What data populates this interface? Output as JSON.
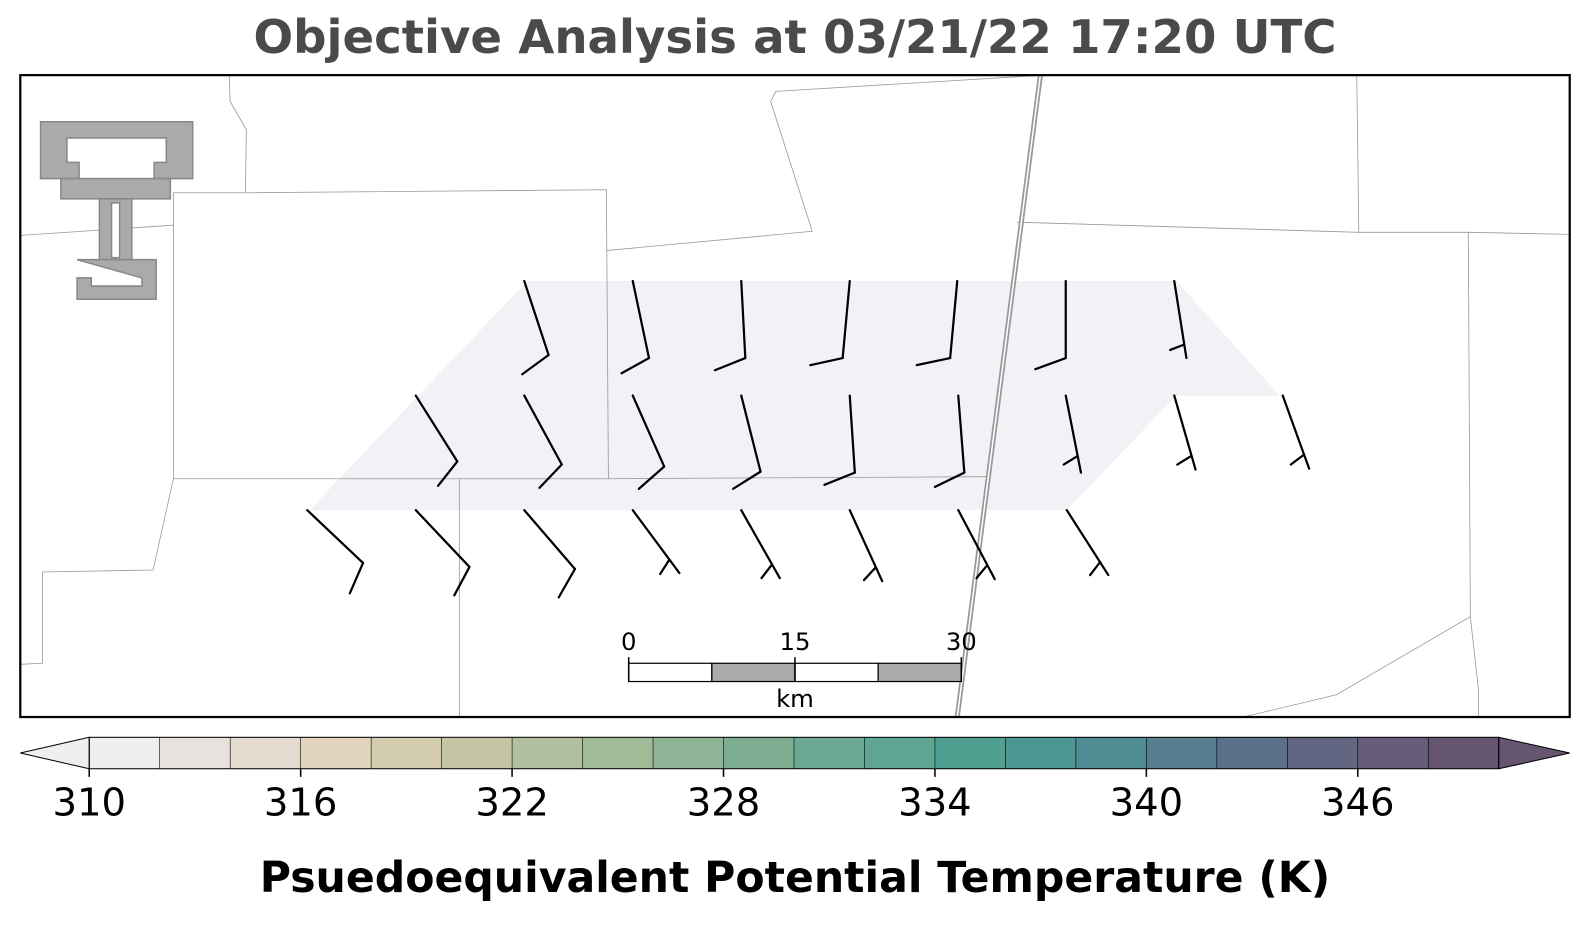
{
  "title": "Objective Analysis at 03/21/22 17:20 UTC",
  "scale_bar": {
    "ticks": [
      0,
      15,
      30
    ],
    "unit": "km"
  },
  "colorbar": {
    "label": "Psuedoequivalent Potential Temperature (K)",
    "lim": [
      310,
      350
    ],
    "ticks": [
      310,
      316,
      322,
      328,
      334,
      340,
      346
    ],
    "colors": [
      "#efeef0",
      "#e8e2df",
      "#e5dbd0",
      "#e2d4bd",
      "#d5cdaf",
      "#c4c5a4",
      "#b1c0a0",
      "#a1bb98",
      "#8fb596",
      "#7eae92",
      "#6da992",
      "#5ea592",
      "#50a092",
      "#4b9893",
      "#4f8c93",
      "#557e8e",
      "#5c7189",
      "#626683",
      "#655d7a",
      "#665570"
    ]
  }
}
